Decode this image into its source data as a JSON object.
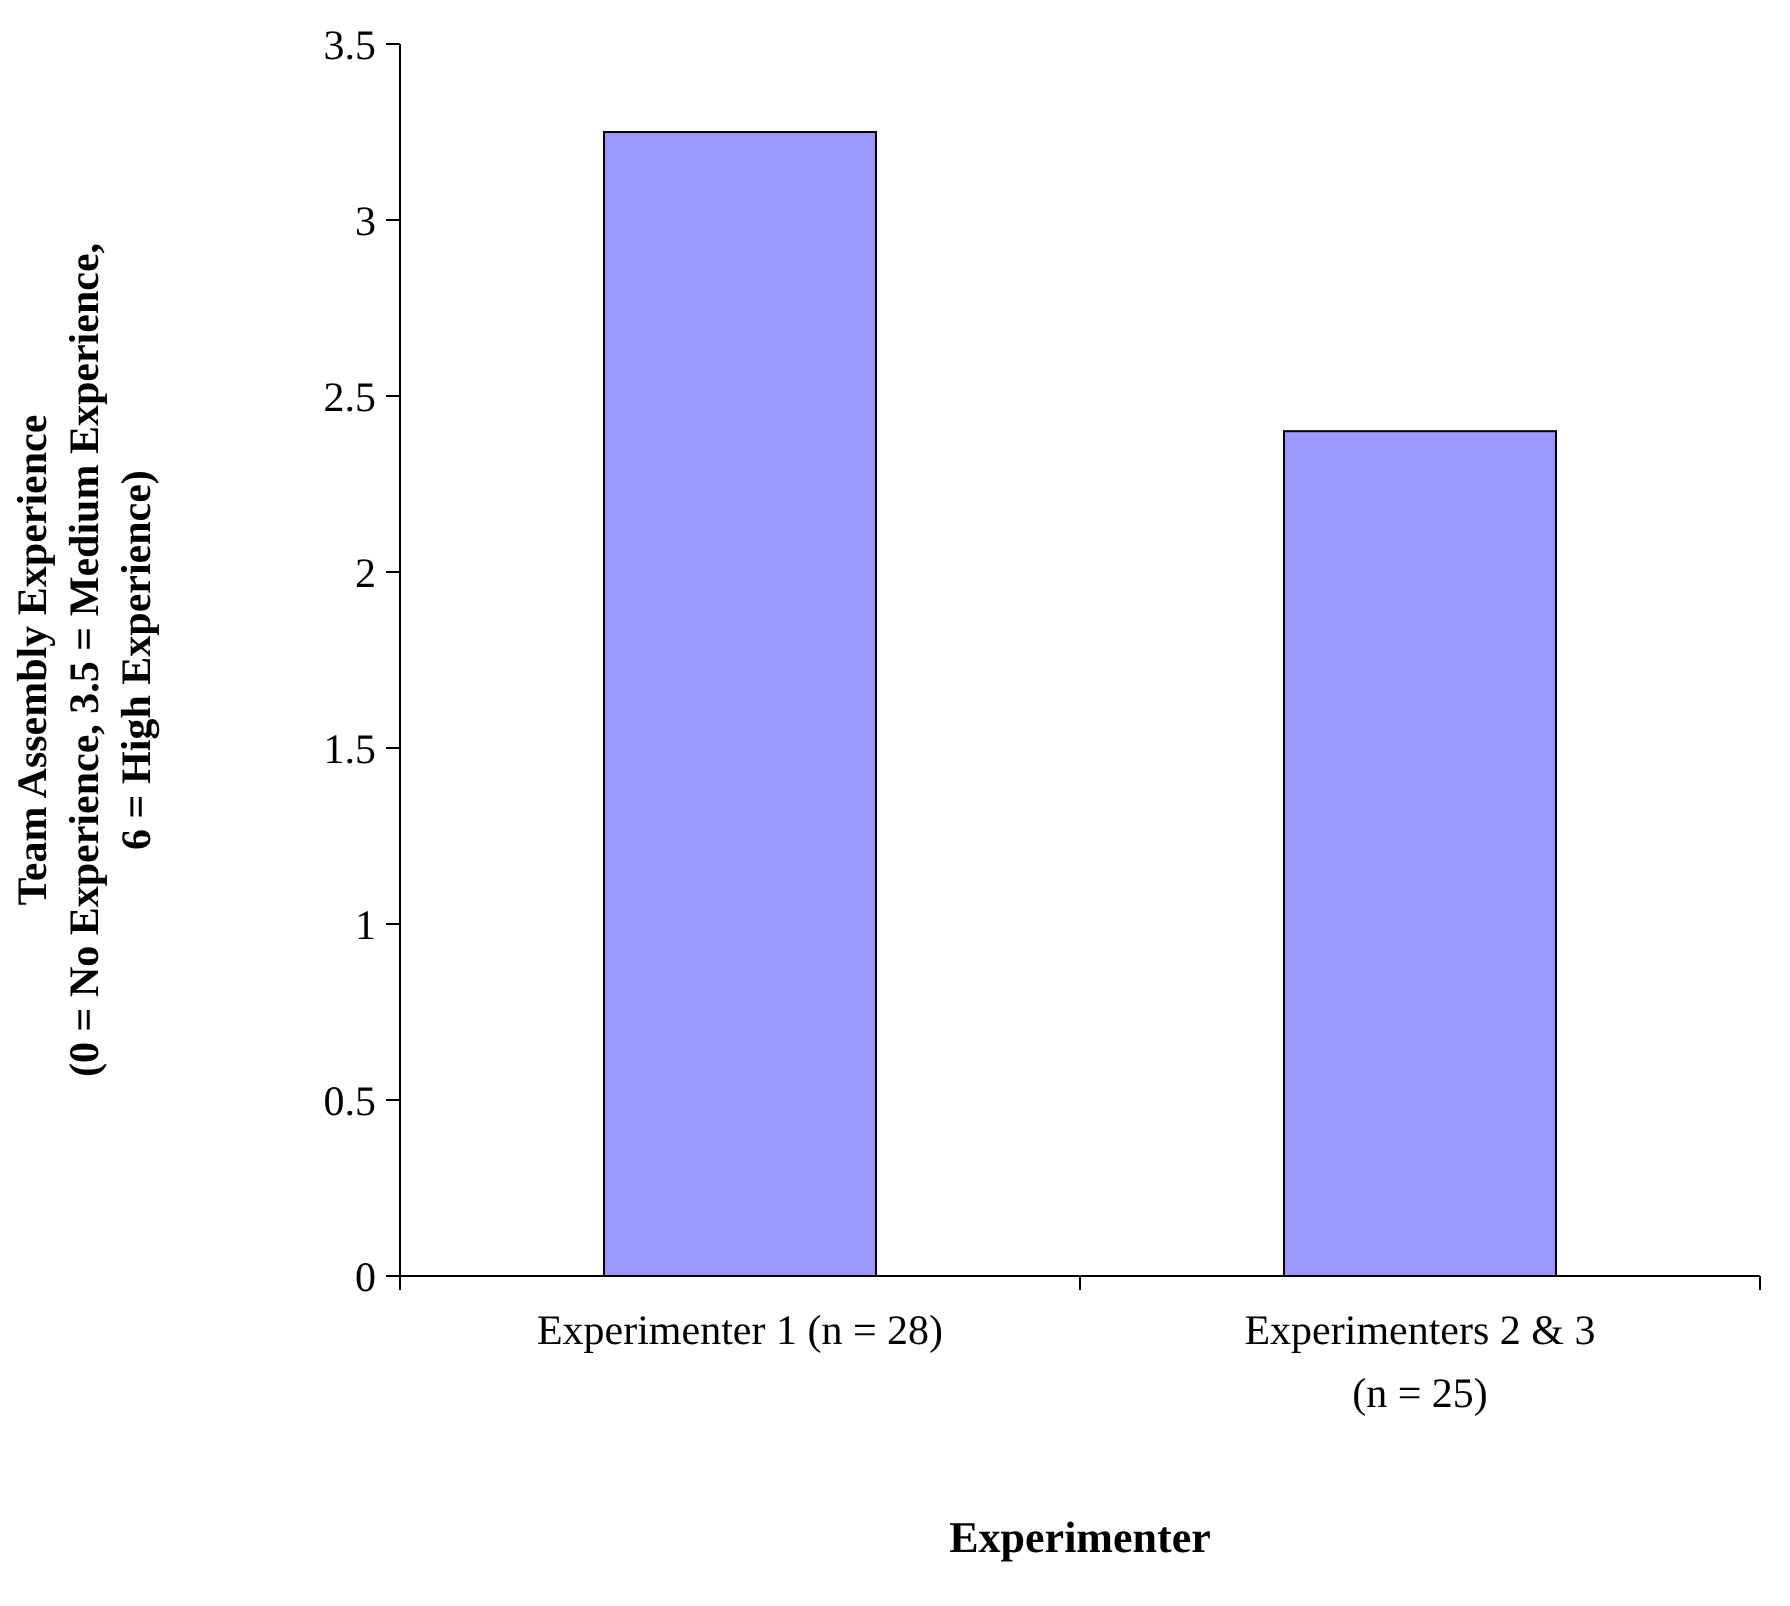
{
  "chart_data": {
    "type": "bar",
    "xlabel": "Experimenter",
    "ylabel": "Team Assembly Experience\n(0 = No Experience, 3.5 = Medium Experience,\n6 = High Experience)",
    "categories": [
      "Experimenter 1 (n = 28)",
      "Experimenters 2 & 3 (n = 25)"
    ],
    "values": [
      3.25,
      2.4
    ],
    "color": "#9999ff",
    "ylim": [
      0,
      3.5
    ],
    "yticks": [
      0,
      0.5,
      1,
      1.5,
      2,
      2.5,
      3,
      3.5
    ],
    "grid": false
  }
}
